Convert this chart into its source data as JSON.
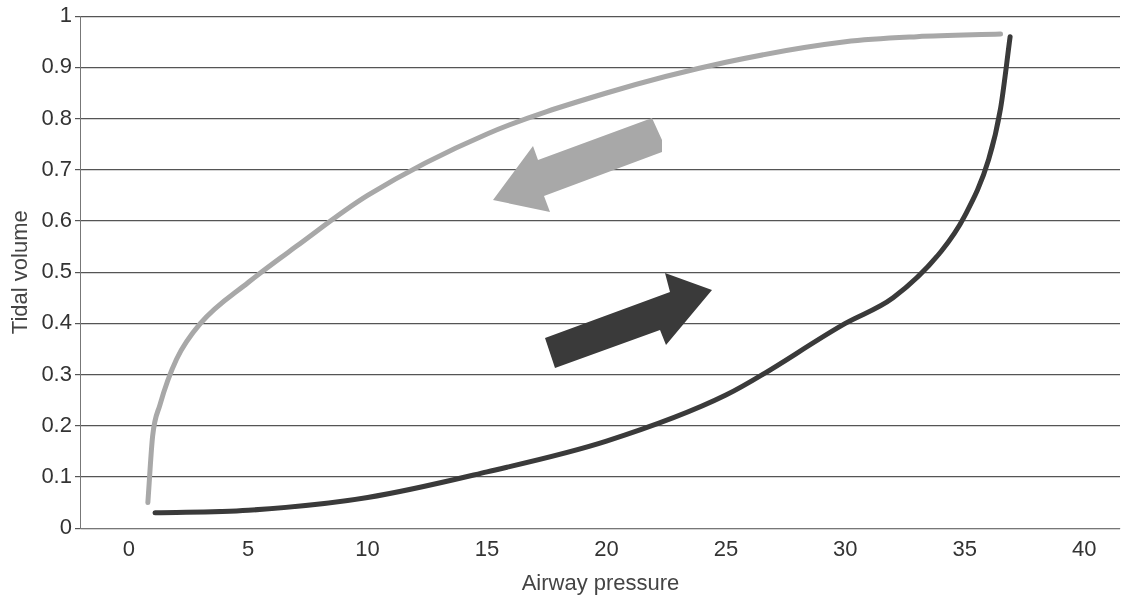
{
  "chart_data": {
    "type": "line",
    "xlabel": "Airway pressure",
    "ylabel": "Tidal volume",
    "xlim": [
      -2,
      41.5
    ],
    "ylim": [
      0,
      1
    ],
    "xticks": [
      0,
      5,
      10,
      15,
      20,
      25,
      30,
      35,
      40
    ],
    "yticks": [
      0,
      0.1,
      0.2,
      0.3,
      0.4,
      0.5,
      0.6,
      0.7,
      0.8,
      0.9,
      1
    ],
    "grid": "y",
    "legend": false,
    "marker": "none",
    "line_style": "solid",
    "series": [
      {
        "color": "#a8a8a8",
        "x": [
          36.5,
          33,
          30,
          25,
          20,
          15,
          10,
          7,
          5,
          3,
          2,
          1.3,
          1,
          0.8
        ],
        "values": [
          0.965,
          0.96,
          0.95,
          0.91,
          0.85,
          0.77,
          0.65,
          0.55,
          0.48,
          0.4,
          0.33,
          0.24,
          0.18,
          0.05
        ]
      },
      {
        "color": "#3a3a3a",
        "x": [
          1.1,
          5,
          10,
          15,
          20,
          25,
          30,
          32,
          34,
          35,
          36,
          36.5,
          36.9
        ],
        "values": [
          0.03,
          0.035,
          0.06,
          0.11,
          0.17,
          0.26,
          0.4,
          0.45,
          0.54,
          0.61,
          0.72,
          0.82,
          0.96
        ]
      }
    ]
  }
}
